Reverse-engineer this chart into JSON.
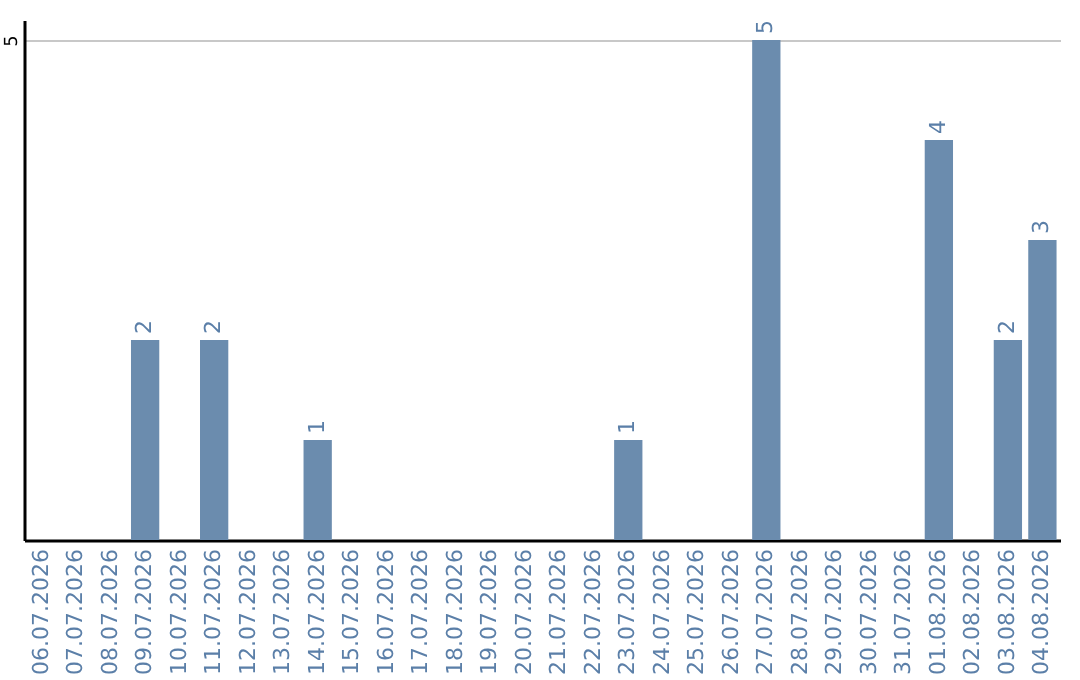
{
  "chart_data": {
    "type": "bar",
    "categories": [
      "06.07.2026",
      "07.07.2026",
      "08.07.2026",
      "09.07.2026",
      "10.07.2026",
      "11.07.2026",
      "12.07.2026",
      "13.07.2026",
      "14.07.2026",
      "15.07.2026",
      "16.07.2026",
      "17.07.2026",
      "18.07.2026",
      "19.07.2026",
      "20.07.2026",
      "21.07.2026",
      "22.07.2026",
      "23.07.2026",
      "24.07.2026",
      "25.07.2026",
      "26.07.2026",
      "27.07.2026",
      "28.07.2026",
      "29.07.2026",
      "30.07.2026",
      "31.07.2026",
      "01.08.2026",
      "02.08.2026",
      "03.08.2026",
      "04.08.2026"
    ],
    "values": [
      0,
      0,
      0,
      2,
      0,
      2,
      0,
      0,
      1,
      0,
      0,
      0,
      0,
      0,
      0,
      0,
      0,
      1,
      0,
      0,
      0,
      5,
      0,
      0,
      0,
      0,
      4,
      0,
      2,
      3
    ],
    "value_labels": [
      null,
      null,
      null,
      "2",
      null,
      "2",
      null,
      null,
      "1",
      null,
      null,
      null,
      null,
      null,
      null,
      null,
      null,
      "1",
      null,
      null,
      null,
      "5",
      null,
      null,
      null,
      null,
      "4",
      null,
      "2",
      "3"
    ],
    "color": "#6b8cae",
    "ylim": [
      0,
      5.2
    ],
    "yticks": [
      5
    ],
    "grid": "y"
  }
}
